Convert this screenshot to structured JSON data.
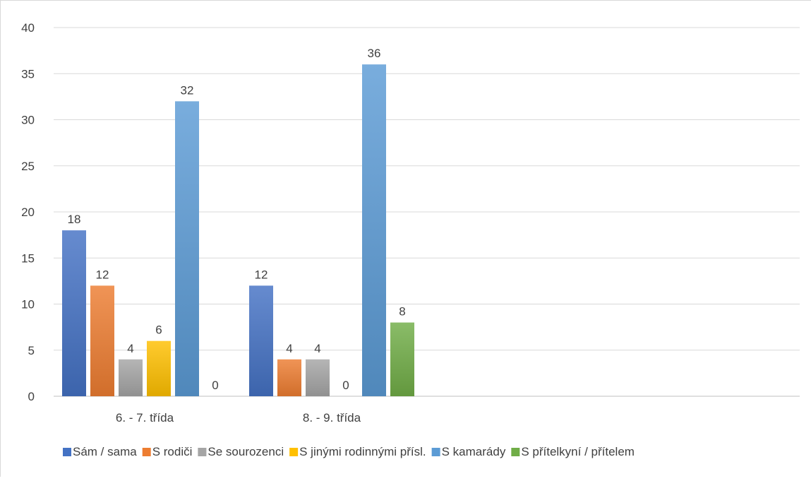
{
  "chart_data": {
    "type": "bar",
    "title": "",
    "xlabel": "",
    "ylabel": "",
    "categories": [
      "6. - 7. třída",
      "8. - 9. třída"
    ],
    "series": [
      {
        "name": "Sám / sama",
        "values": [
          18,
          12
        ],
        "color": "#4472C4"
      },
      {
        "name": "S rodiči",
        "values": [
          12,
          4
        ],
        "color": "#ED7D31"
      },
      {
        "name": "Se sourozenci",
        "values": [
          4,
          4
        ],
        "color": "#A5A5A5"
      },
      {
        "name": "S jinými rodinnými přísl.",
        "values": [
          6,
          0
        ],
        "color": "#FFC000"
      },
      {
        "name": "S kamarády",
        "values": [
          32,
          36
        ],
        "color": "#5B9BD5"
      },
      {
        "name": "S přítelkyní / přítelem",
        "values": [
          0,
          8
        ],
        "color": "#70AD47"
      }
    ],
    "ylim": [
      0,
      40
    ],
    "yticks": [
      0,
      5,
      10,
      15,
      20,
      25,
      30,
      35,
      40
    ],
    "grid": true,
    "data_labels": true,
    "legend_position": "bottom"
  }
}
